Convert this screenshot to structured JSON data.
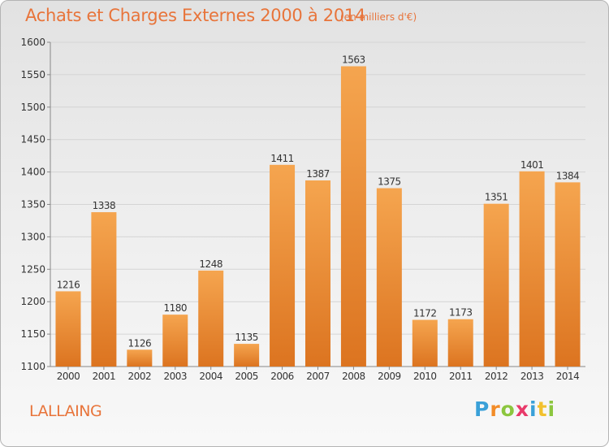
{
  "header": {
    "title": "Achats et Charges Externes 2000 à 2014",
    "subtitle": "(en milliers d'€)"
  },
  "footer": {
    "commune": "LALLAING",
    "logo_letters": [
      "P",
      "r",
      "o",
      "x",
      "i",
      "t",
      "i"
    ],
    "logo_colors": [
      "#3aa0d8",
      "#f28c28",
      "#8cc63f",
      "#e83a6a",
      "#3aa0d8",
      "#f2c12e",
      "#8cc63f"
    ]
  },
  "chart_data": {
    "type": "bar",
    "categories": [
      "2000",
      "2001",
      "2002",
      "2003",
      "2004",
      "2005",
      "2006",
      "2007",
      "2008",
      "2009",
      "2010",
      "2011",
      "2012",
      "2013",
      "2014"
    ],
    "values": [
      1216,
      1338,
      1126,
      1180,
      1248,
      1135,
      1411,
      1387,
      1563,
      1375,
      1172,
      1173,
      1351,
      1401,
      1384
    ],
    "ylim": [
      1100,
      1600
    ],
    "yticks": [
      1100,
      1150,
      1200,
      1250,
      1300,
      1350,
      1400,
      1450,
      1500,
      1550,
      1600
    ],
    "grid": true,
    "bar_color_top": "#f5a54f",
    "bar_color_bottom": "#dc7420"
  }
}
